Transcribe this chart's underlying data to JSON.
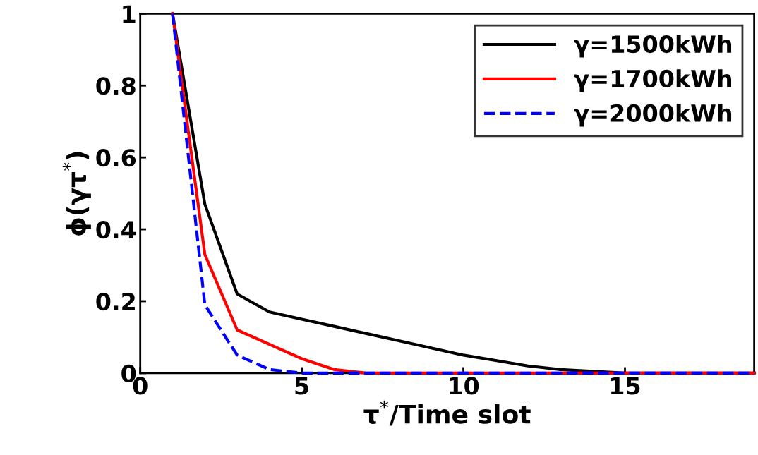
{
  "chart_data": {
    "type": "line",
    "xlabel": "τ$^{*}$/Time slot",
    "ylabel": "ϕ(γτ$^{*}$)",
    "x": [
      1,
      2,
      3,
      4,
      5,
      6,
      7,
      8,
      9,
      10,
      11,
      12,
      13,
      14,
      15,
      16,
      17,
      18,
      19
    ],
    "series": [
      {
        "name": "γ=1500kWh",
        "color": "#000000",
        "line_style": "solid",
        "values": [
          1,
          0.47,
          0.22,
          0.17,
          0.15,
          0.13,
          0.11,
          0.09,
          0.07,
          0.05,
          0.035,
          0.02,
          0.01,
          0.005,
          0,
          0,
          0,
          0,
          0
        ]
      },
      {
        "name": "γ=1700kWh",
        "color": "#ff0000",
        "line_style": "solid",
        "values": [
          1,
          0.33,
          0.12,
          0.08,
          0.04,
          0.01,
          0,
          0,
          0,
          0,
          0,
          0,
          0,
          0,
          0,
          0,
          0,
          0,
          0
        ]
      },
      {
        "name": "γ=2000kWh",
        "color": "#0000ff",
        "line_style": "dashed",
        "values": [
          1,
          0.19,
          0.05,
          0.01,
          0,
          0,
          0,
          0,
          0,
          0,
          0,
          0,
          0,
          0,
          0,
          0,
          0,
          0,
          0
        ]
      }
    ],
    "xlim": [
      0,
      19
    ],
    "ylim": [
      0,
      1
    ],
    "xticks": [
      0,
      5,
      10,
      15
    ],
    "yticks": [
      0,
      0.2,
      0.4,
      0.6,
      0.8,
      1
    ],
    "grid": false,
    "legend": "top right",
    "marker": "none"
  }
}
